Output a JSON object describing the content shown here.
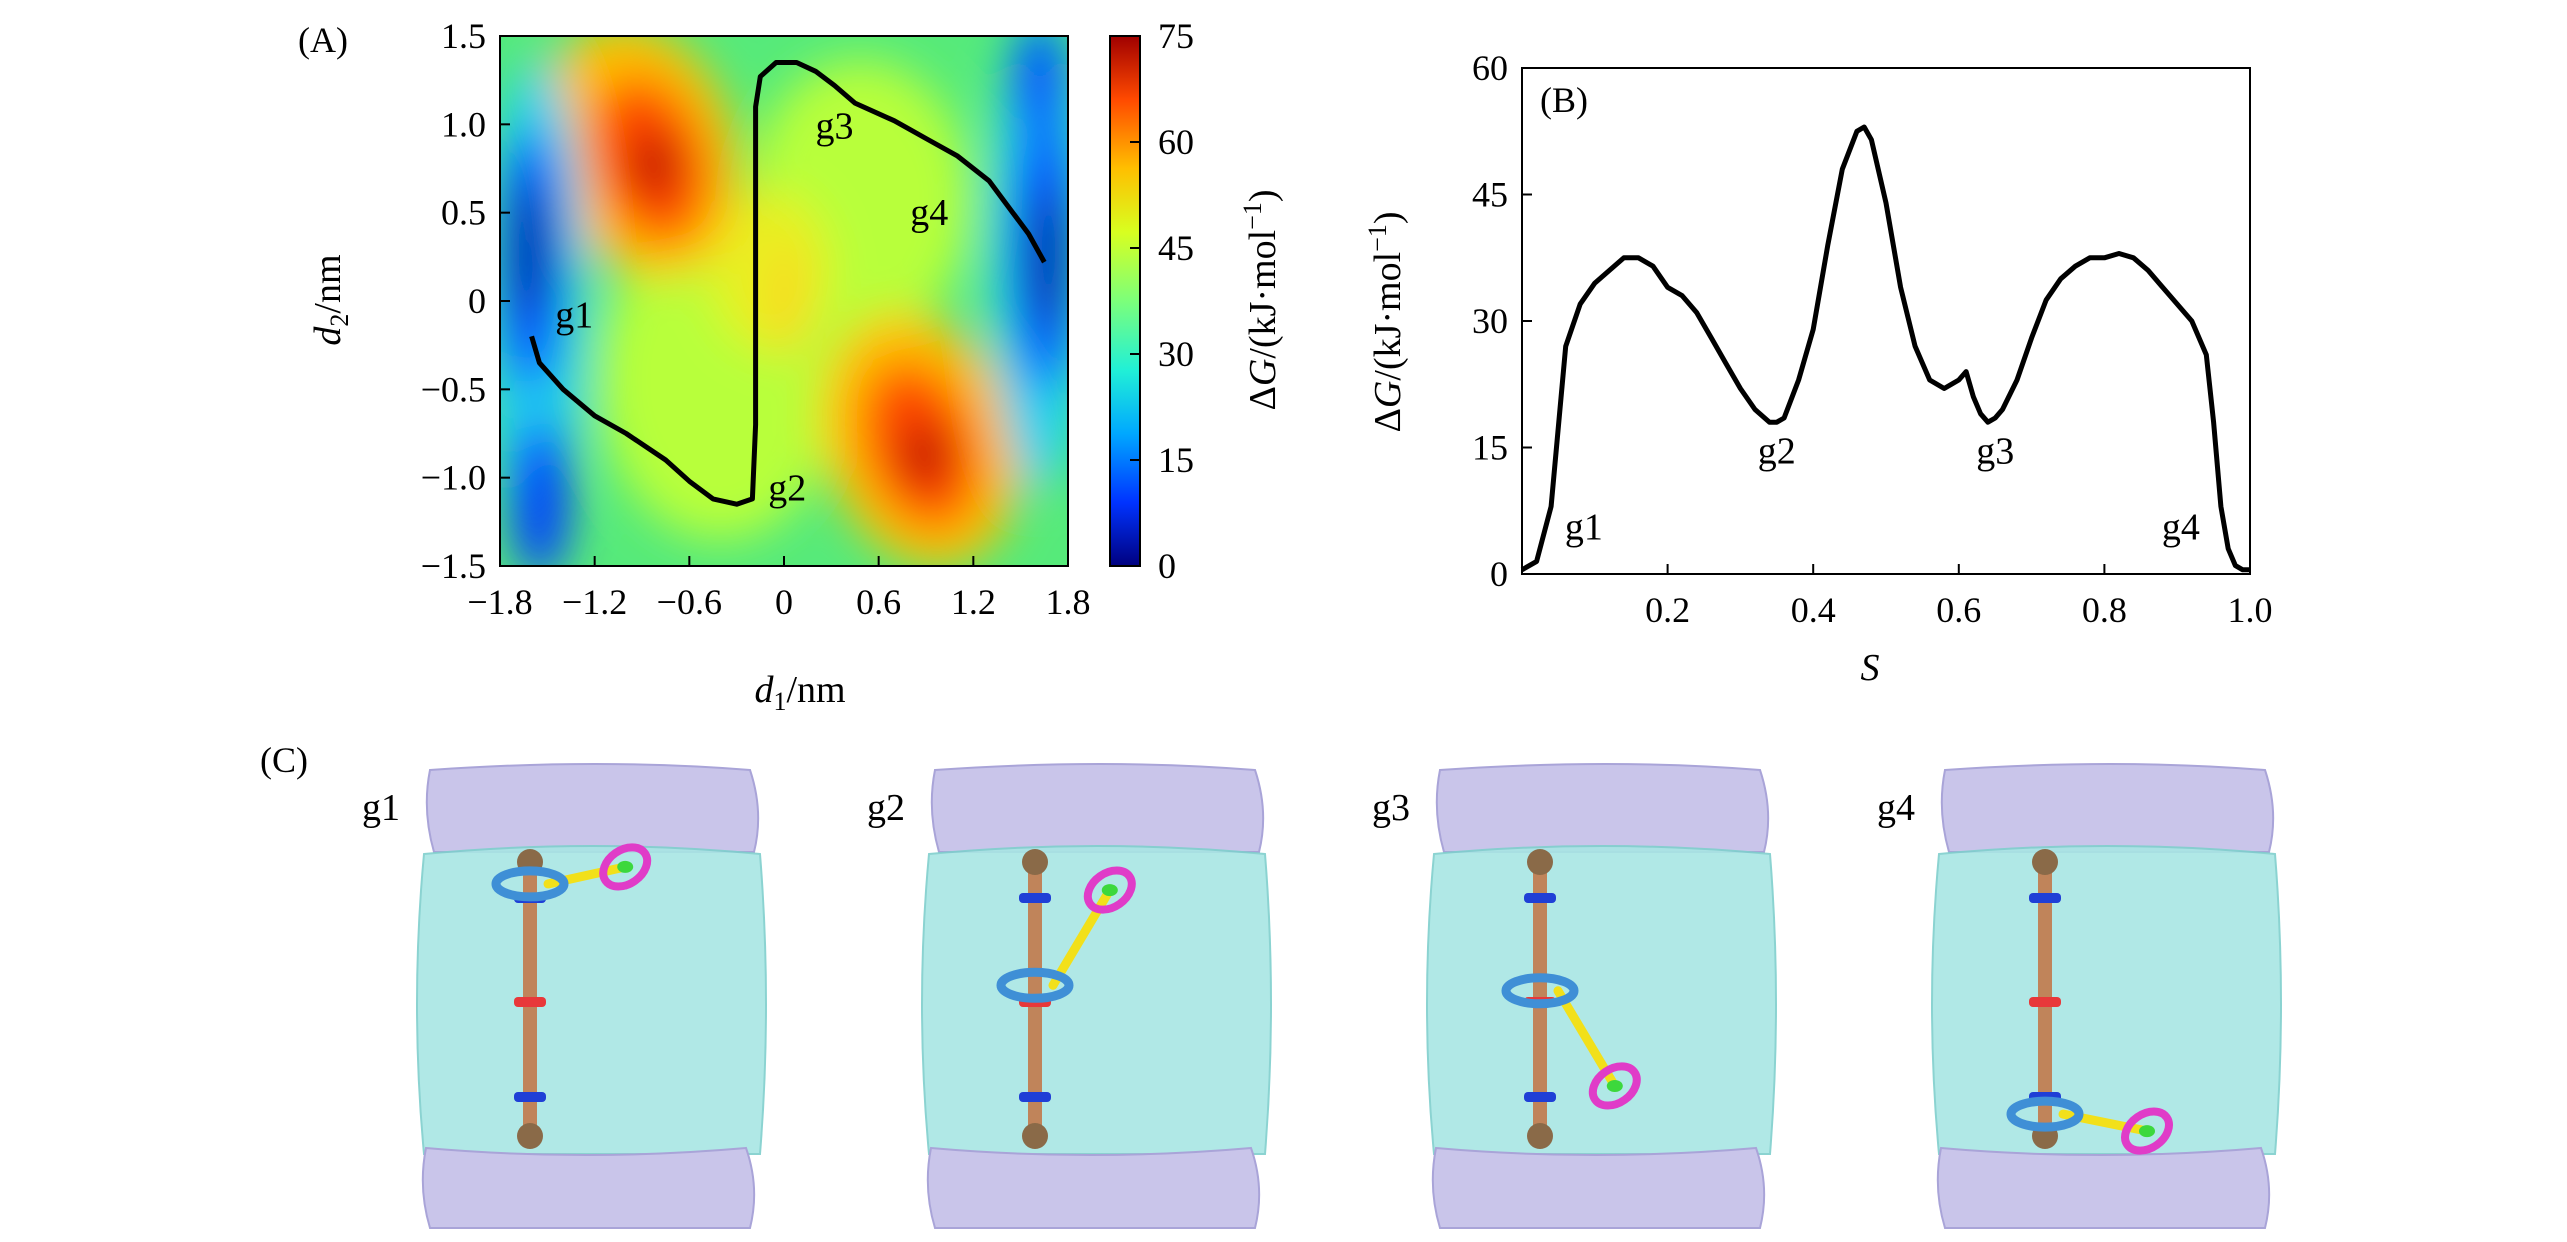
{
  "panel_labels": {
    "a": "(A)",
    "b": "(B)",
    "c": "(C)"
  },
  "colors": {
    "curve": "#000000",
    "water": "#a8e6e4",
    "membrane": "#c9c5ea",
    "rod": "#c0845a",
    "rod_end": "#8a6a48",
    "site_blue": "#1f3fd6",
    "site_red": "#e8383a",
    "ring_blue": "#3f8fd6",
    "ring_magenta": "#e03cc8",
    "stopper_green": "#3cd83c",
    "linker": "#f2e01a"
  },
  "chart_data": [
    {
      "type": "heatmap",
      "panel": "(A)",
      "x_tick_labels": [
        "−1.8",
        "−1.2",
        "−0.6",
        "0",
        "0.6",
        "1.2",
        "1.8"
      ],
      "y_tick_labels": [
        "1.5",
        "1.0",
        "0.5",
        "0",
        "−0.5",
        "−1.0",
        "−1.5"
      ],
      "x_ticks": [
        -1.8,
        -1.2,
        -0.6,
        0,
        0.6,
        1.2,
        1.8
      ],
      "y_ticks": [
        1.5,
        1.0,
        0.5,
        0,
        -0.5,
        -1.0,
        -1.5
      ],
      "xlim": [
        -1.8,
        1.8
      ],
      "ylim": [
        -1.5,
        1.5
      ],
      "xlabel_var": "d",
      "xlabel_sub": "1",
      "xlabel_unit": "/nm",
      "ylabel_var": "d",
      "ylabel_sub": "2",
      "ylabel_unit": "/nm",
      "colorbar": {
        "min": 0,
        "max": 75,
        "tick_labels": [
          "75",
          "60",
          "45",
          "30",
          "15",
          "0"
        ],
        "ticks": [
          75,
          60,
          45,
          30,
          15,
          0
        ],
        "label_delta": "Δ",
        "label_var": "G",
        "label_unit": "/(kJ·mol",
        "label_exp": "−1",
        "label_close": ")"
      },
      "path": [
        [
          -1.6,
          -0.2
        ],
        [
          -1.55,
          -0.35
        ],
        [
          -1.4,
          -0.5
        ],
        [
          -1.2,
          -0.65
        ],
        [
          -1.0,
          -0.75
        ],
        [
          -0.75,
          -0.9
        ],
        [
          -0.6,
          -1.02
        ],
        [
          -0.45,
          -1.12
        ],
        [
          -0.3,
          -1.15
        ],
        [
          -0.2,
          -1.12
        ],
        [
          -0.18,
          -0.7
        ],
        [
          -0.18,
          0.2
        ],
        [
          -0.18,
          1.1
        ],
        [
          -0.15,
          1.27
        ],
        [
          -0.05,
          1.35
        ],
        [
          0.08,
          1.35
        ],
        [
          0.2,
          1.3
        ],
        [
          0.32,
          1.22
        ],
        [
          0.45,
          1.12
        ],
        [
          0.7,
          1.02
        ],
        [
          0.9,
          0.92
        ],
        [
          1.1,
          0.82
        ],
        [
          1.3,
          0.68
        ],
        [
          1.45,
          0.5
        ],
        [
          1.55,
          0.38
        ],
        [
          1.65,
          0.22
        ]
      ],
      "annotations": [
        {
          "text": "g1",
          "x": -1.45,
          "y": -0.15
        },
        {
          "text": "g2",
          "x": -0.1,
          "y": -1.13
        },
        {
          "text": "g3",
          "x": 0.2,
          "y": 0.92
        },
        {
          "text": "g4",
          "x": 0.8,
          "y": 0.43
        }
      ]
    },
    {
      "type": "line",
      "panel": "(B)",
      "xlim": [
        0,
        1.0
      ],
      "ylim": [
        0,
        60
      ],
      "x_ticks": [
        0.2,
        0.4,
        0.6,
        0.8,
        1.0
      ],
      "x_tick_labels": [
        "0.2",
        "0.4",
        "0.6",
        "0.8",
        "1.0"
      ],
      "y_ticks": [
        0,
        15,
        30,
        45,
        60
      ],
      "y_tick_labels": [
        "0",
        "15",
        "30",
        "45",
        "60"
      ],
      "xlabel": "S",
      "ylabel_delta": "Δ",
      "ylabel_var": "G",
      "ylabel_unit": "/(kJ·mol",
      "ylabel_exp": "−1",
      "ylabel_close": ")",
      "x": [
        0.0,
        0.02,
        0.04,
        0.06,
        0.08,
        0.1,
        0.12,
        0.14,
        0.16,
        0.18,
        0.2,
        0.22,
        0.24,
        0.26,
        0.28,
        0.3,
        0.32,
        0.34,
        0.35,
        0.36,
        0.38,
        0.4,
        0.42,
        0.44,
        0.46,
        0.47,
        0.48,
        0.5,
        0.52,
        0.54,
        0.56,
        0.58,
        0.6,
        0.61,
        0.62,
        0.63,
        0.64,
        0.65,
        0.66,
        0.68,
        0.7,
        0.72,
        0.74,
        0.76,
        0.78,
        0.8,
        0.82,
        0.84,
        0.86,
        0.88,
        0.9,
        0.92,
        0.94,
        0.95,
        0.96,
        0.97,
        0.98,
        0.99,
        1.0
      ],
      "y": [
        0.5,
        1.5,
        8,
        27,
        32,
        34.5,
        36,
        37.5,
        37.5,
        36.5,
        34,
        33,
        31,
        28,
        25,
        22,
        19.5,
        18,
        18,
        18.5,
        23,
        29,
        39,
        48,
        52.5,
        53,
        51.5,
        44,
        34,
        27,
        23,
        22,
        23,
        24,
        21,
        19,
        18,
        18.5,
        19.5,
        23,
        28,
        32.5,
        35,
        36.5,
        37.5,
        37.5,
        38,
        37.5,
        36,
        34,
        32,
        30,
        26,
        18,
        8,
        3,
        1,
        0.5,
        0.5
      ],
      "annotations": [
        {
          "text": "g1",
          "x": 0.085,
          "y": 5.5
        },
        {
          "text": "g2",
          "x": 0.35,
          "y": 14.5
        },
        {
          "text": "g3",
          "x": 0.65,
          "y": 14.5
        },
        {
          "text": "g4",
          "x": 0.905,
          "y": 5.5
        }
      ]
    }
  ],
  "snapshots": [
    {
      "label": "g1",
      "ring_y": 0.08,
      "ring_kind": "top-left",
      "head_dx": 0.28,
      "head_dy": -0.05
    },
    {
      "label": "g2",
      "ring_y": 0.45,
      "ring_kind": "mid",
      "head_dx": 0.22,
      "head_dy": -0.28
    },
    {
      "label": "g3",
      "ring_y": 0.47,
      "ring_kind": "mid",
      "head_dx": 0.22,
      "head_dy": 0.28
    },
    {
      "label": "g4",
      "ring_y": 0.92,
      "ring_kind": "bottom",
      "head_dx": 0.3,
      "head_dy": 0.05
    }
  ]
}
